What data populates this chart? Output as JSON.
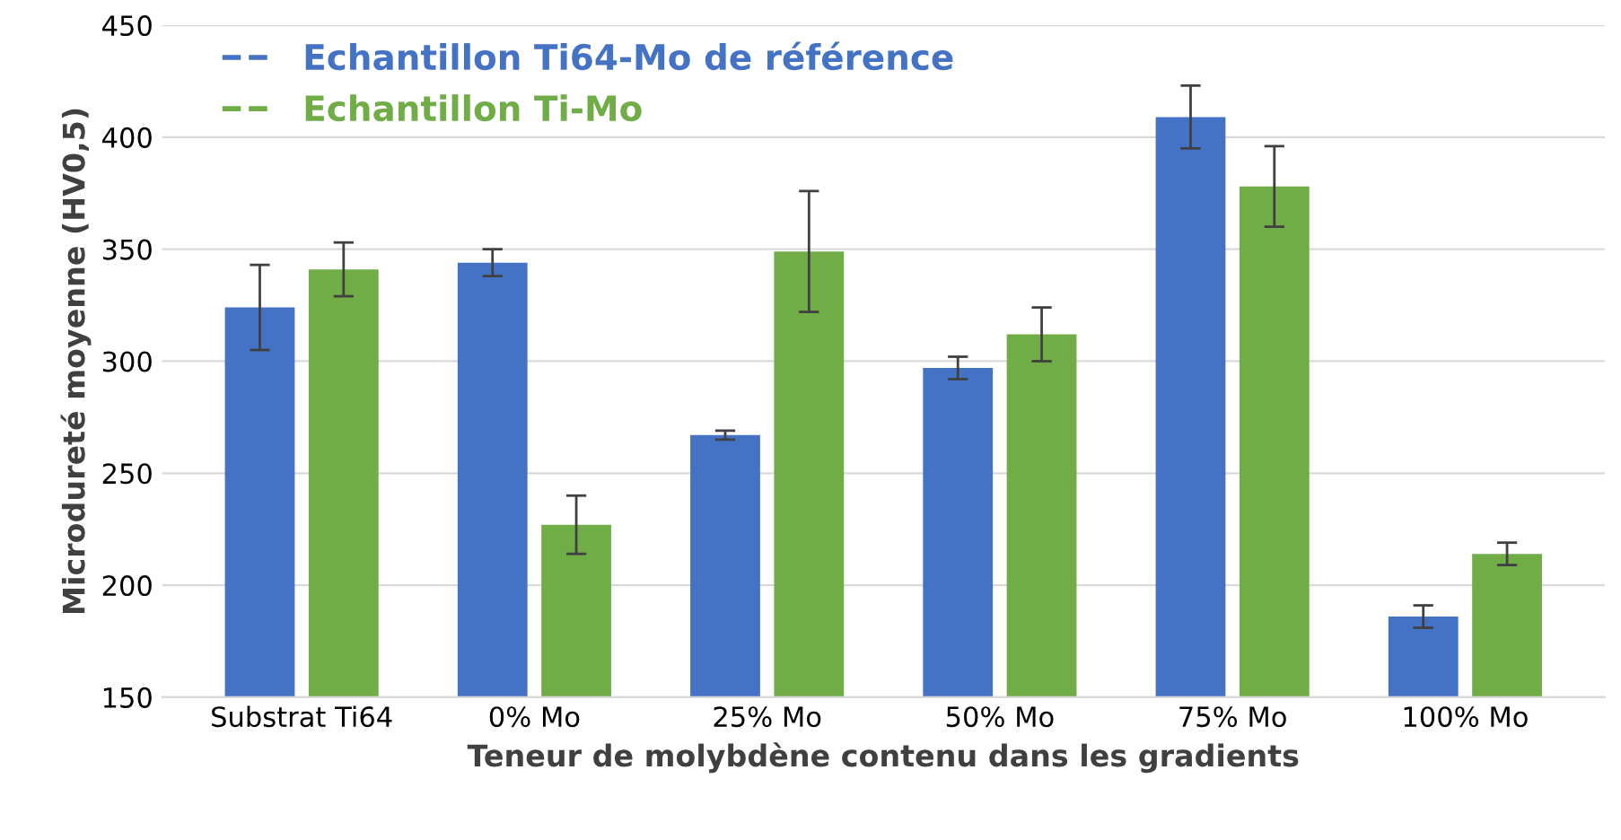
{
  "chart_data": {
    "type": "bar",
    "xlabel": "Teneur de molybdène contenu dans les gradients",
    "ylabel": "Microdureté moyenne (HV0,5)",
    "categories": [
      "Substrat Ti64",
      "0% Mo",
      "25% Mo",
      "50% Mo",
      "75% Mo",
      "100% Mo"
    ],
    "series": [
      {
        "name": "Echantillon Ti64-Mo de référence",
        "color": "#4472c4",
        "values": [
          324,
          344,
          267,
          297,
          409,
          186
        ],
        "errors": [
          19,
          6,
          2,
          5,
          14,
          5
        ]
      },
      {
        "name": "Echantillon Ti-Mo",
        "color": "#70ad47",
        "values": [
          341,
          227,
          349,
          312,
          378,
          214
        ],
        "errors": [
          12,
          13,
          27,
          12,
          18,
          5
        ]
      }
    ],
    "ylim": [
      150,
      450
    ],
    "yticks": [
      150,
      200,
      250,
      300,
      350,
      400,
      450
    ],
    "grid": "y",
    "legend": "top left"
  }
}
